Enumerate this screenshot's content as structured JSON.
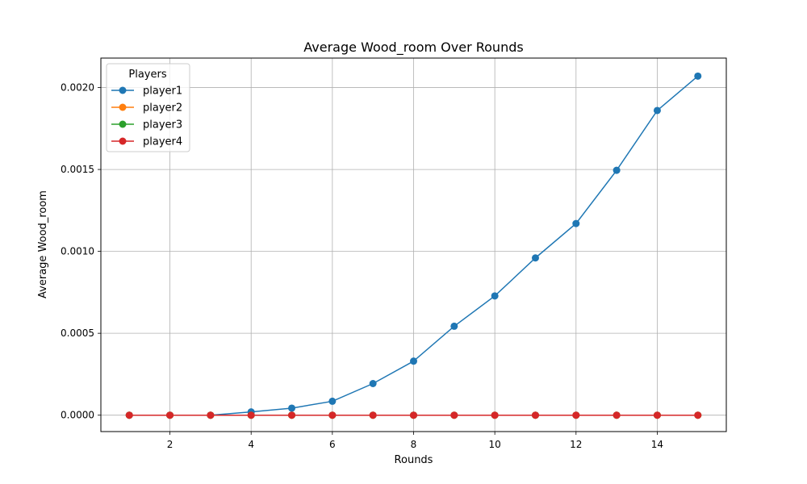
{
  "chart_data": {
    "type": "line",
    "title": "Average Wood_room Over Rounds",
    "xlabel": "Rounds",
    "ylabel": "Average Wood_room",
    "xlim": [
      0.3,
      15.7
    ],
    "ylim": [
      -0.0001,
      0.00218
    ],
    "xticks": [
      2,
      4,
      6,
      8,
      10,
      12,
      14
    ],
    "xtick_labels": [
      "2",
      "4",
      "6",
      "8",
      "10",
      "12",
      "14"
    ],
    "yticks": [
      0.0,
      0.0005,
      0.001,
      0.0015,
      0.002
    ],
    "ytick_labels": [
      "0.0000",
      "0.0005",
      "0.0010",
      "0.0015",
      "0.0020"
    ],
    "grid": true,
    "legend": {
      "title": "Players",
      "placement": "top-left"
    },
    "x": [
      1,
      2,
      3,
      4,
      5,
      6,
      7,
      8,
      9,
      10,
      11,
      12,
      13,
      14,
      15
    ],
    "series": [
      {
        "name": "player1",
        "color": "#1f77b4",
        "values": [
          0.0,
          0.0,
          0.0,
          2e-05,
          4.3e-05,
          8.5e-05,
          0.000193,
          0.00033,
          0.000543,
          0.000728,
          0.00096,
          0.00117,
          0.001495,
          0.00186,
          0.00207
        ]
      },
      {
        "name": "player2",
        "color": "#ff7f0e",
        "values": [
          0,
          0,
          0,
          0,
          0,
          0,
          0,
          0,
          0,
          0,
          0,
          0,
          0,
          0,
          0
        ]
      },
      {
        "name": "player3",
        "color": "#2ca02c",
        "values": [
          0,
          0,
          0,
          0,
          0,
          0,
          0,
          0,
          0,
          0,
          0,
          0,
          0,
          0,
          0
        ]
      },
      {
        "name": "player4",
        "color": "#d62728",
        "values": [
          0,
          0,
          0,
          0,
          0,
          0,
          0,
          0,
          0,
          0,
          0,
          0,
          0,
          0,
          0
        ]
      }
    ]
  }
}
